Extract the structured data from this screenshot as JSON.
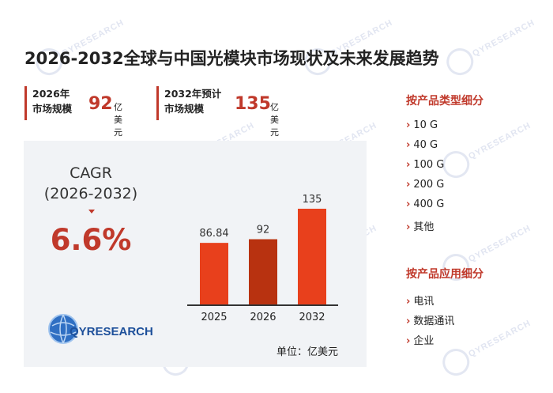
{
  "title": "2026-2032全球与中国光模块市场现状及未来发展趋势",
  "kpis": [
    {
      "label_line1": "2026年",
      "label_line2": "市场规模",
      "value": "92",
      "unit": "亿美元"
    },
    {
      "label_line1": "2032年预计",
      "label_line2": "市场规模",
      "value": "135",
      "unit": "亿美元"
    }
  ],
  "cagr": {
    "label": "CAGR",
    "period": "(2026-2032)",
    "value": "6.6%"
  },
  "logo_text": "QYRESEARCH",
  "watermark": "QYRESEARCH",
  "unit_note": "单位：亿美元",
  "colors": {
    "accent": "#c0392b",
    "bar": "#e8401c",
    "bar_highlight": "#b83210"
  },
  "chart_data": {
    "type": "bar",
    "categories": [
      "2025",
      "2026",
      "2032"
    ],
    "values": [
      86.84,
      92,
      135
    ],
    "data_labels": [
      "86.84",
      "92",
      "135"
    ],
    "ylim": [
      0,
      145
    ],
    "highlight_index": 1,
    "title": "",
    "xlabel": "",
    "ylabel": "",
    "grid": false
  },
  "sidebar": {
    "type_section": {
      "heading": "按产品类型细分",
      "items": [
        "10 G",
        "40 G",
        "100 G",
        "200 G",
        "400 G",
        "其他"
      ]
    },
    "app_section": {
      "heading": "按产品应用细分",
      "items": [
        "电讯",
        "数据通讯",
        "企业"
      ]
    },
    "chevron": "›"
  }
}
